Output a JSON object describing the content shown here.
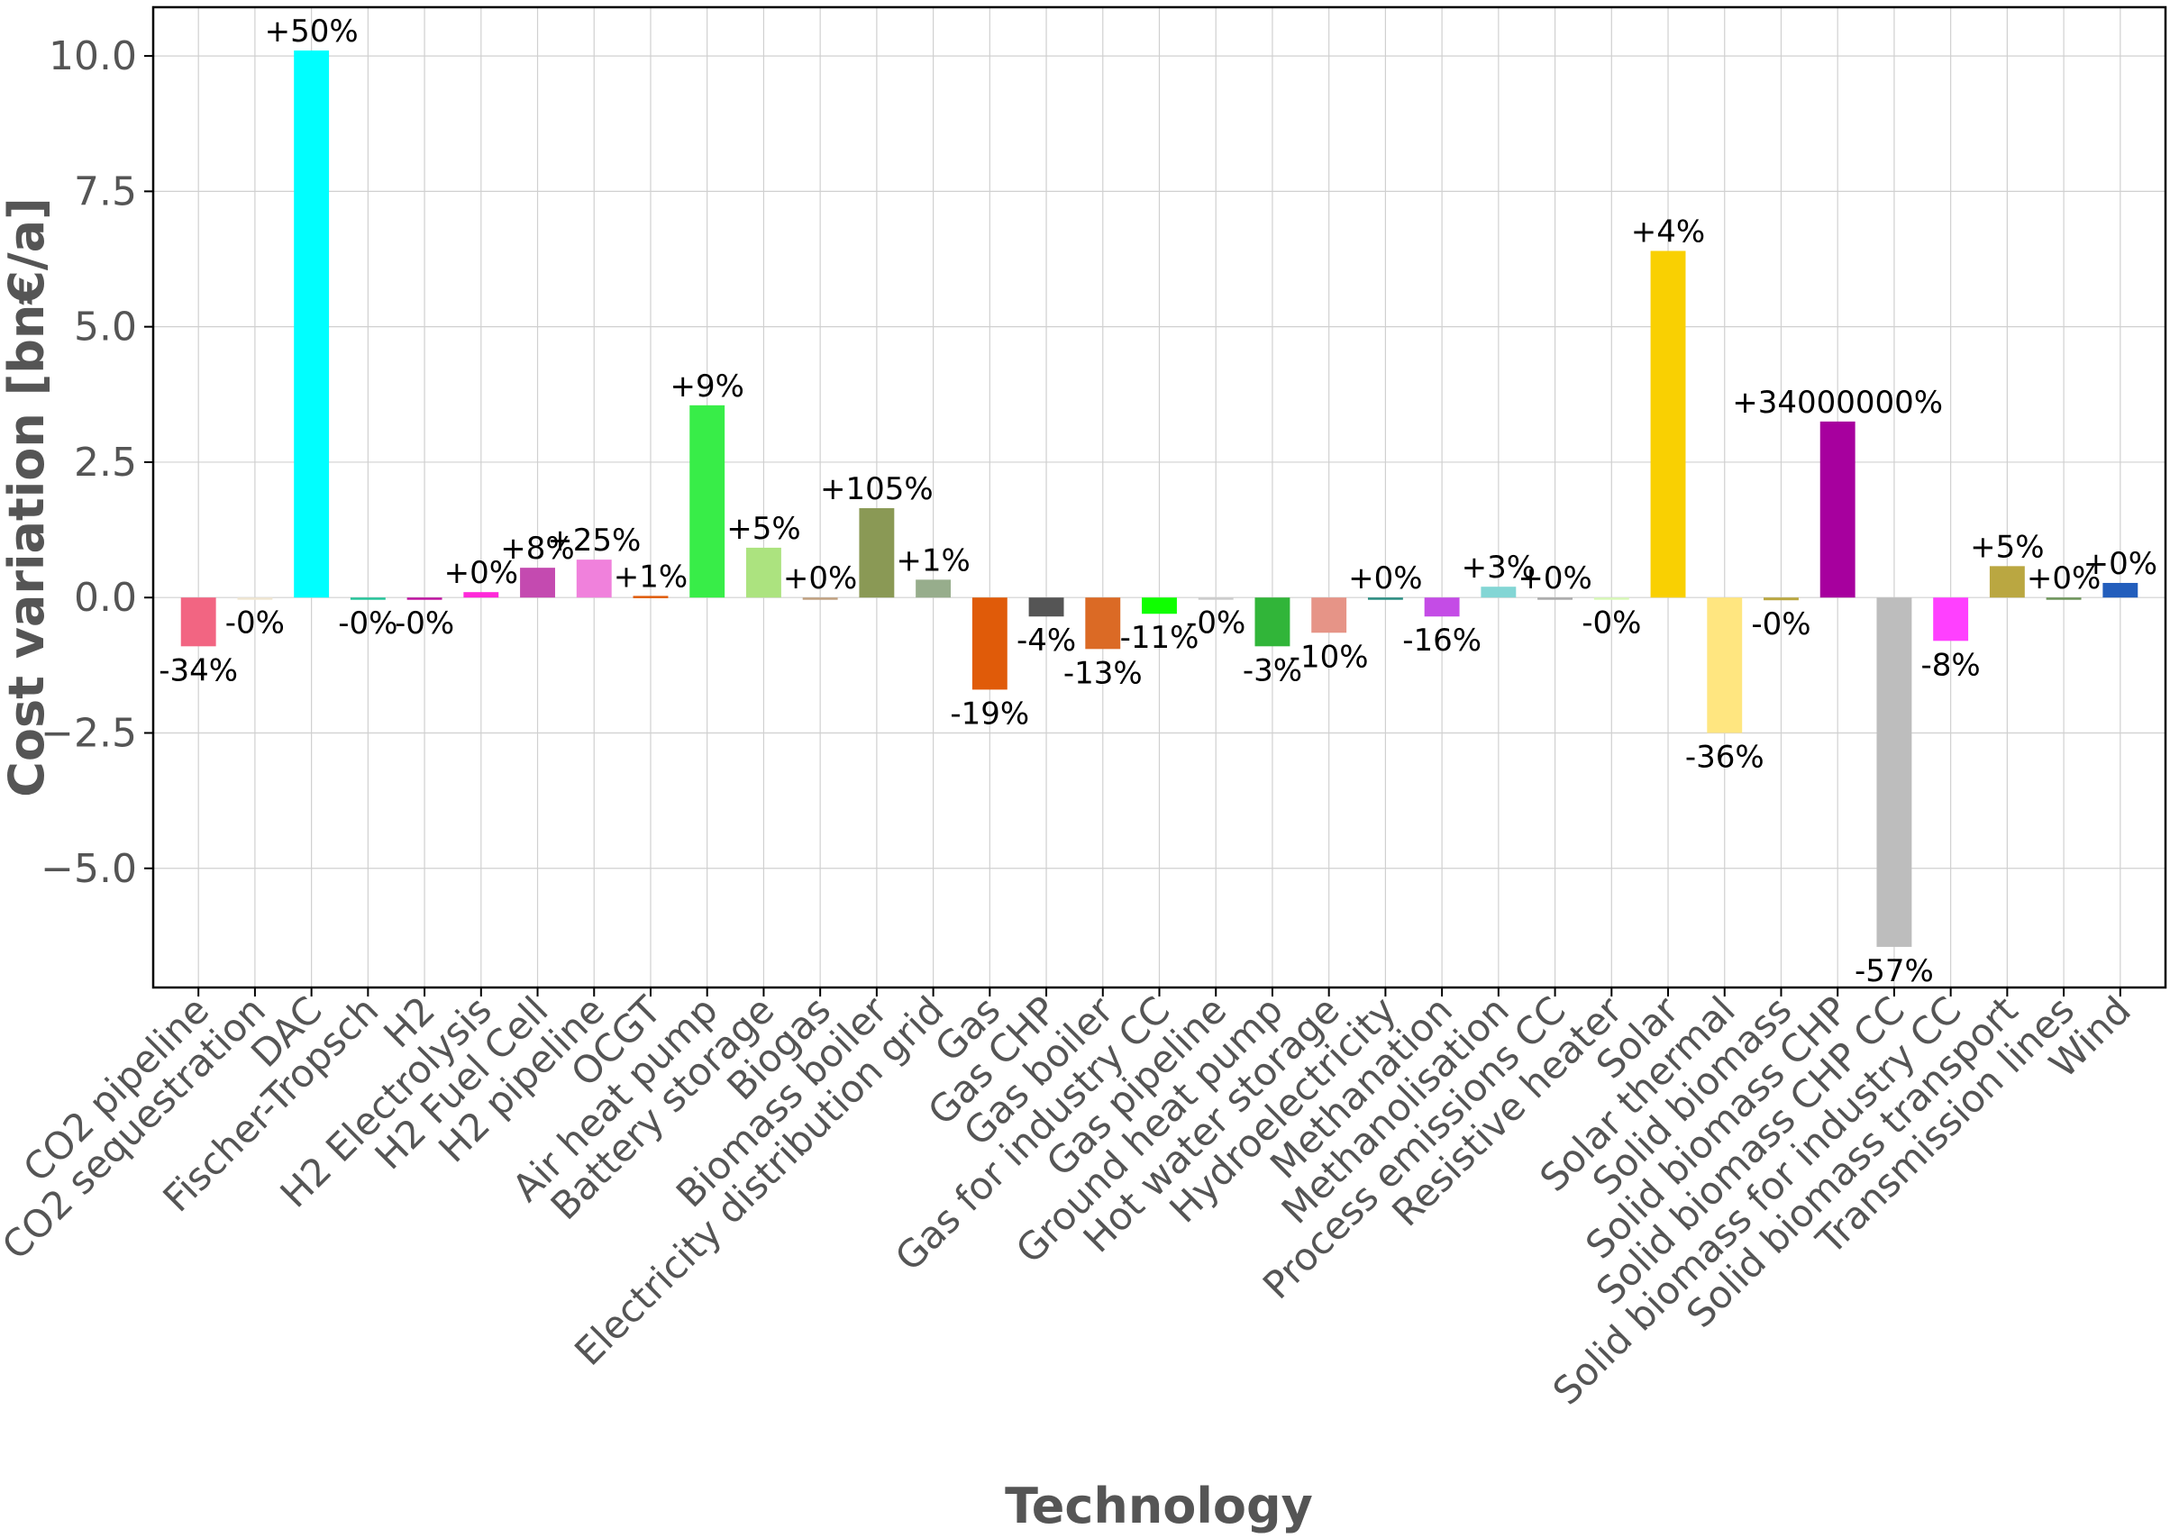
{
  "chart_data": {
    "type": "bar",
    "title": "",
    "xlabel": "Technology",
    "ylabel": "Cost variation [bn€/a]",
    "ylim": [
      -7.2,
      10.9
    ],
    "yticks": [
      -5.0,
      -2.5,
      0.0,
      2.5,
      5.0,
      7.5,
      10.0
    ],
    "ytick_labels": [
      "−5.0",
      "−2.5",
      "0.0",
      "2.5",
      "5.0",
      "7.5",
      "10.0"
    ],
    "grid": true,
    "legend": "none",
    "categories": [
      "CO2 pipeline",
      "CO2 sequestration",
      "DAC",
      "Fischer-Tropsch",
      "H2",
      "H2 Electrolysis",
      "H2 Fuel Cell",
      "H2 pipeline",
      "OCGT",
      "Air heat pump",
      "Battery storage",
      "Biogas",
      "Biomass boiler",
      "Electricity distribution grid",
      "Gas",
      "Gas CHP",
      "Gas boiler",
      "Gas for industry CC",
      "Gas pipeline",
      "Ground heat pump",
      "Hot water storage",
      "Hydroelectricity",
      "Methanation",
      "Methanolisation",
      "Process emissions CC",
      "Resistive heater",
      "Solar",
      "Solar thermal",
      "Solid biomass",
      "Solid biomass CHP",
      "Solid biomass CHP CC",
      "Solid biomass for industry CC",
      "Solid biomass transport",
      "Transmission lines",
      "Wind"
    ],
    "values": [
      -0.9,
      -0.02,
      10.1,
      -0.03,
      -0.03,
      0.1,
      0.55,
      0.7,
      0.03,
      3.55,
      0.92,
      0.0,
      1.65,
      0.33,
      -1.7,
      -0.35,
      -0.95,
      -0.3,
      -0.02,
      -0.9,
      -0.65,
      0.0,
      -0.35,
      0.2,
      0.0,
      -0.02,
      6.4,
      -2.5,
      -0.05,
      3.25,
      -6.45,
      -0.8,
      0.58,
      0.0,
      0.27
    ],
    "labels": [
      "-34%",
      "-0%",
      "+50%",
      "-0%",
      "-0%",
      "+0%",
      "+8%",
      "+25%",
      "+1%",
      "+9%",
      "+5%",
      "+0%",
      "+105%",
      "+1%",
      "-19%",
      "-4%",
      "-13%",
      "-11%",
      "-0%",
      "-3%",
      "-10%",
      "+0%",
      "-16%",
      "+3%",
      "+0%",
      "-0%",
      "+4%",
      "-36%",
      "-0%",
      "+34000000%",
      "-57%",
      "-8%",
      "+5%",
      "+0%",
      "+0%"
    ],
    "colors": [
      "#f26582",
      "#f0e6d2",
      "#00ffff",
      "#25c49a",
      "#bf13a0",
      "#ff29d9",
      "#c44ab0",
      "#f081dc",
      "#e05b09",
      "#38ed48",
      "#ace37f",
      "#c0a080",
      "#8a9955",
      "#97ad8c",
      "#e05b09",
      "#555555",
      "#db6a25",
      "#0fff00",
      "#cccccc",
      "#31b539",
      "#e69487",
      "#298c81",
      "#c44ce6",
      "#83d6d5",
      "#aaaaaa",
      "#d8f9b8",
      "#f9d002",
      "#ffe680",
      "#baa741",
      "#a7009e",
      "#bdbdbd",
      "#ff40ff",
      "#baa741",
      "#6c9459",
      "#235ebc"
    ]
  }
}
